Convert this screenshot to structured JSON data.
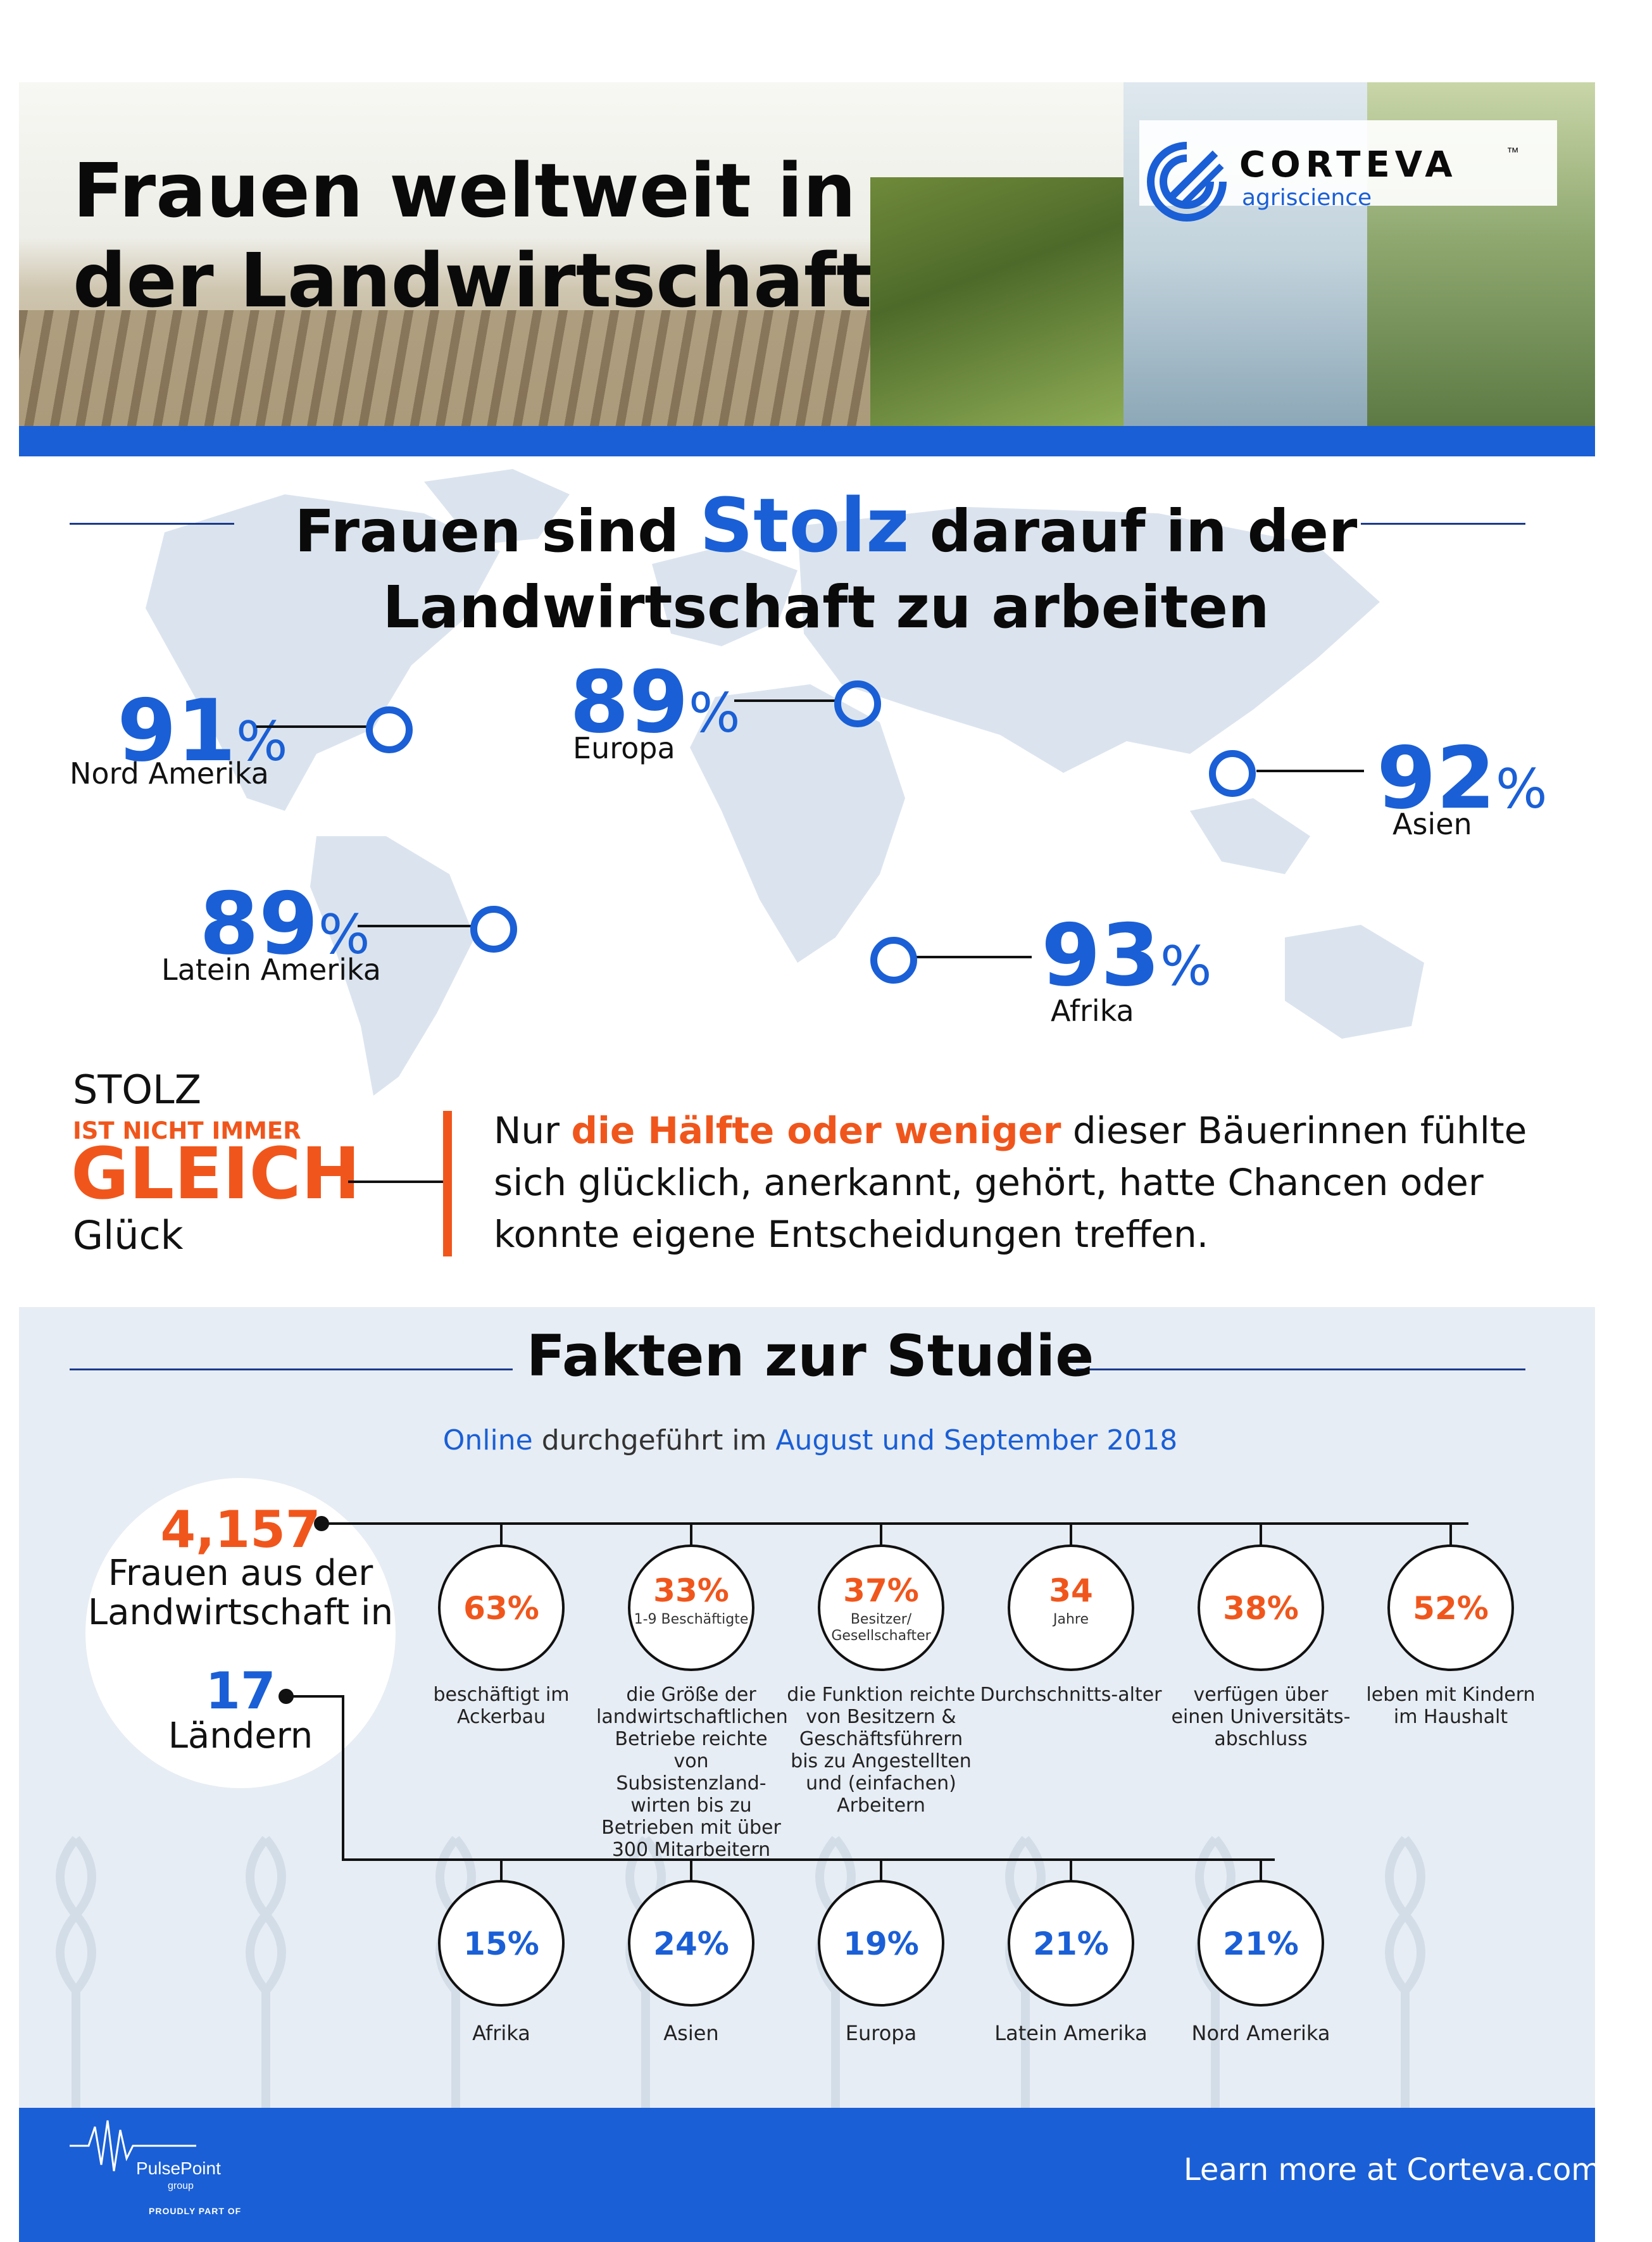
{
  "header": {
    "title_line1": "Frauen weltweit in",
    "title_line2": "der Landwirtschaft",
    "brand": "CORTEVA",
    "brand_tm": "™",
    "brand_sub": "agriscience"
  },
  "pride": {
    "title_pre": "Frauen sind",
    "title_highlight": "Stolz",
    "title_post": "darauf in der",
    "title_line2": "Landwirtschaft zu arbeiten",
    "percent_symbol": "%",
    "regions": [
      {
        "value": "91",
        "label": "Nord Amerika"
      },
      {
        "value": "89",
        "label": "Europa"
      },
      {
        "value": "92",
        "label": "Asien"
      },
      {
        "value": "89",
        "label": "Latein Amerika"
      },
      {
        "value": "93",
        "label": "Afrika"
      }
    ]
  },
  "stolz": {
    "line1": "STOLZ",
    "line2": "IST NICHT IMMER",
    "line3": "GLEICH",
    "line4": "Glück",
    "text_pre": "Nur",
    "text_highlight": "die Hälfte oder weniger",
    "text_post": "dieser Bäuerinnen fühlte sich glücklich, anerkannt, gehört, hatte Chancen oder konnte eigene Entscheidungen treffen."
  },
  "facts": {
    "title": "Fakten zur Studie",
    "sub_online": "Online",
    "sub_mid": "durchgeführt im",
    "sub_date": "August und September 2018",
    "count": "4,157",
    "count_text": "Frauen aus der Landwirtschaft in",
    "countries": "17",
    "countries_text": "Ländern",
    "top": [
      {
        "value": "63%",
        "sub": "",
        "color": "#f0561c",
        "desc": "beschäftigt im Ackerbau"
      },
      {
        "value": "33%",
        "sub": "1-9 Beschäftigte",
        "color": "#f0561c",
        "desc": "die Größe der landwirtschaftlichen Betriebe reichte von Subsistenzland-wirten bis zu Betrieben mit über 300 Mitarbeitern"
      },
      {
        "value": "37%",
        "sub": "Besitzer/ Gesellschafter",
        "color": "#f0561c",
        "desc": "die Funktion reichte von Besitzern & Geschäftsführern bis zu Angestellten und (einfachen) Arbeitern"
      },
      {
        "value": "34",
        "sub": "Jahre",
        "color": "#f0561c",
        "desc": "Durchschnitts-alter"
      },
      {
        "value": "38%",
        "sub": "",
        "color": "#f0561c",
        "desc": "verfügen über einen Universitäts-abschluss"
      },
      {
        "value": "52%",
        "sub": "",
        "color": "#f0561c",
        "desc": "leben mit Kindern im Haushalt"
      }
    ],
    "bottom": [
      {
        "value": "15%",
        "label": "Afrika",
        "color": "#1a5fd6"
      },
      {
        "value": "24%",
        "label": "Asien",
        "color": "#1a5fd6"
      },
      {
        "value": "19%",
        "label": "Europa",
        "color": "#1a5fd6"
      },
      {
        "value": "21%",
        "label": "Latein Amerika",
        "color": "#1a5fd6"
      },
      {
        "value": "21%",
        "label": "Nord Amerika",
        "color": "#1a5fd6"
      }
    ]
  },
  "footer": {
    "cta": "Learn more at Corteva.com",
    "partner_name": "PulsePoint",
    "partner_sub": "group",
    "partner_proud": "PROUDLY PART OF"
  },
  "colors": {
    "accent_blue": "#1a5fd6",
    "accent_orange": "#f0561c",
    "map_light": "#dbe4ee"
  }
}
